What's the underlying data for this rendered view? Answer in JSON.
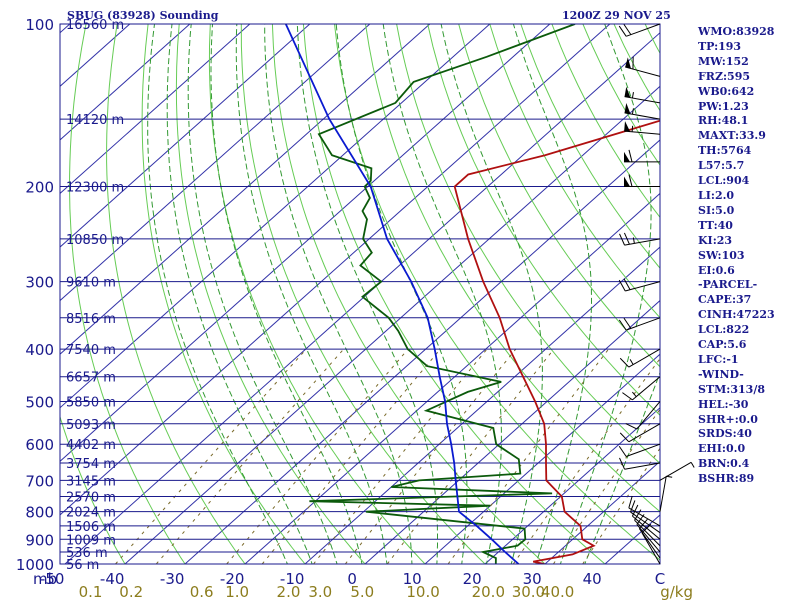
{
  "header": {
    "station": "SBUG (83928) Sounding",
    "datetime": "1200Z 29 NOV 25"
  },
  "stats": [
    "WMO:83928",
    "TP:193",
    "MW:152",
    "FRZ:595",
    "WB0:642",
    "PW:1.23",
    "RH:48.1",
    "MAXT:33.9",
    "TH:5764",
    "L57:5.7",
    "LCL:904",
    "LI:2.0",
    "SI:5.0",
    "TT:40",
    "KI:23",
    "SW:103",
    "EI:0.6",
    "-PARCEL-",
    "CAPE:37",
    "CINH:47223",
    "LCL:822",
    "CAP:5.6",
    "LFC:-1",
    "-WIND-",
    "STM:313/8",
    "HEL:-30",
    "SHR+:0.0",
    "SRDS:40",
    "EHI:0.0",
    "BRN:0.4",
    "BSHR:89"
  ],
  "colors": {
    "frame": "#1a1a8c",
    "isobar": "#1a1a8c",
    "isotherm": "#3333a8",
    "dry_adiabat": "#66cc55",
    "moist_adiabat": "#339933",
    "mixing_ratio": "#7a6a2a",
    "temperature": "#b01010",
    "dewpoint": "#0b5a0b",
    "parcel": "#0a1ad0",
    "wind": "#000000",
    "mixing_ratio_label": "#8c7d1e"
  },
  "chart_data": {
    "type": "line",
    "title": "SBUG (83928) Sounding 1200Z 29 NOV 25",
    "pressure_axis_label": "mb",
    "pressure_levels": [
      100,
      200,
      300,
      400,
      500,
      600,
      700,
      800,
      900,
      1000
    ],
    "pressure_ticks": [
      "100",
      "200",
      "300",
      "400",
      "500",
      "600",
      "700",
      "800",
      "900",
      "1000"
    ],
    "temperature_ticks": [
      "-50",
      "-40",
      "-30",
      "-20",
      "-10",
      "0",
      "10",
      "20",
      "30",
      "40",
      "C"
    ],
    "temperature_values": [
      -50,
      -40,
      -30,
      -20,
      -10,
      0,
      10,
      20,
      30,
      40
    ],
    "mixing_ratio_unit": "g/kg",
    "mixing_ratio_ticks": [
      "0.1",
      "0.2",
      "0.6",
      "1.0",
      "2.0",
      "3.0",
      "5.0",
      "10.0",
      "20.0",
      "30.0",
      "40.0"
    ],
    "height_levels": [
      {
        "p": 100,
        "h": "16560 m"
      },
      {
        "p": 150,
        "h": "14120 m"
      },
      {
        "p": 200,
        "h": "12300 m"
      },
      {
        "p": 250,
        "h": "10850 m"
      },
      {
        "p": 300,
        "h": "9610 m"
      },
      {
        "p": 350,
        "h": "8516 m"
      },
      {
        "p": 400,
        "h": "7540 m"
      },
      {
        "p": 450,
        "h": "6657 m"
      },
      {
        "p": 500,
        "h": "5850 m"
      },
      {
        "p": 550,
        "h": "5093 m"
      },
      {
        "p": 600,
        "h": "4402 m"
      },
      {
        "p": 650,
        "h": "3754 m"
      },
      {
        "p": 700,
        "h": "3145 m"
      },
      {
        "p": 750,
        "h": "2570 m"
      },
      {
        "p": 800,
        "h": "2024 m"
      },
      {
        "p": 850,
        "h": "1506 m"
      },
      {
        "p": 900,
        "h": "1009 m"
      },
      {
        "p": 950,
        "h": "536 m"
      },
      {
        "p": 1000,
        "h": "56 m"
      }
    ],
    "series": [
      {
        "key": "temperature",
        "data": [
          [
            1000,
            29.9
          ],
          [
            990,
            27.6
          ],
          [
            975,
            30.1
          ],
          [
            960,
            32.8
          ],
          [
            925,
            34.7
          ],
          [
            900,
            31.6
          ],
          [
            850,
            28.8
          ],
          [
            800,
            23.5
          ],
          [
            750,
            20.2
          ],
          [
            700,
            14.6
          ],
          [
            650,
            11.3
          ],
          [
            600,
            7.8
          ],
          [
            550,
            3.7
          ],
          [
            500,
            -2.0
          ],
          [
            450,
            -8.6
          ],
          [
            400,
            -16.0
          ],
          [
            350,
            -23.5
          ],
          [
            300,
            -33.0
          ],
          [
            250,
            -43.5
          ],
          [
            200,
            -55.5
          ],
          [
            190,
            -55.5
          ],
          [
            175,
            -46.3
          ],
          [
            150,
            -33.0
          ],
          [
            125,
            -32.0
          ],
          [
            100,
            -32.0
          ]
        ]
      },
      {
        "key": "dewpoint",
        "data": [
          [
            1000,
            21.8
          ],
          [
            975,
            20.7
          ],
          [
            950,
            17.4
          ],
          [
            925,
            22.0
          ],
          [
            900,
            22.1
          ],
          [
            860,
            20.0
          ],
          [
            800,
            -9.6
          ],
          [
            780,
            10.0
          ],
          [
            765,
            -21.0
          ],
          [
            740,
            18.0
          ],
          [
            720,
            -10.0
          ],
          [
            700,
            -6.6
          ],
          [
            680,
            9.0
          ],
          [
            640,
            6.1
          ],
          [
            600,
            -0.5
          ],
          [
            560,
            -4.0
          ],
          [
            520,
            -18.4
          ],
          [
            480,
            -15.0
          ],
          [
            460,
            -11.3
          ],
          [
            430,
            -26.6
          ],
          [
            400,
            -33.0
          ],
          [
            370,
            -38.0
          ],
          [
            350,
            -42.0
          ],
          [
            320,
            -50.3
          ],
          [
            300,
            -50.0
          ],
          [
            280,
            -56.5
          ],
          [
            265,
            -57.0
          ],
          [
            250,
            -61.0
          ],
          [
            230,
            -64.0
          ],
          [
            222,
            -66.3
          ],
          [
            210,
            -67.5
          ],
          [
            200,
            -70.5
          ],
          [
            195,
            -70.6
          ],
          [
            185,
            -72.8
          ],
          [
            175,
            -81.8
          ],
          [
            160,
            -87.9
          ],
          [
            140,
            -81.0
          ],
          [
            128,
            -81.9
          ],
          [
            115,
            -74.4
          ],
          [
            100,
            -65.8
          ]
        ]
      },
      {
        "key": "parcel",
        "data": [
          [
            1000,
            25.6
          ],
          [
            950,
            21.1
          ],
          [
            900,
            16.5
          ],
          [
            850,
            11.5
          ],
          [
            800,
            5.9
          ],
          [
            750,
            2.8
          ],
          [
            700,
            -0.5
          ],
          [
            650,
            -4.0
          ],
          [
            600,
            -8.0
          ],
          [
            550,
            -12.5
          ],
          [
            500,
            -17.0
          ],
          [
            450,
            -22.5
          ],
          [
            400,
            -28.5
          ],
          [
            350,
            -35.5
          ],
          [
            300,
            -45.0
          ],
          [
            250,
            -57.0
          ],
          [
            200,
            -69.5
          ],
          [
            150,
            -89.0
          ],
          [
            100,
            -114.0
          ]
        ]
      }
    ],
    "winds": [
      {
        "p": 1000,
        "dir": 330,
        "spd": 10
      },
      {
        "p": 975,
        "dir": 325,
        "spd": 10
      },
      {
        "p": 950,
        "dir": 320,
        "spd": 10
      },
      {
        "p": 925,
        "dir": 315,
        "spd": 10
      },
      {
        "p": 900,
        "dir": 310,
        "spd": 10
      },
      {
        "p": 875,
        "dir": 305,
        "spd": 10
      },
      {
        "p": 850,
        "dir": 300,
        "spd": 10
      },
      {
        "p": 800,
        "dir": 10,
        "spd": 5
      },
      {
        "p": 700,
        "dir": 60,
        "spd": 5
      },
      {
        "p": 650,
        "dir": 260,
        "spd": 10
      },
      {
        "p": 600,
        "dir": 250,
        "spd": 10
      },
      {
        "p": 550,
        "dir": 240,
        "spd": 10
      },
      {
        "p": 500,
        "dir": 220,
        "spd": 10
      },
      {
        "p": 450,
        "dir": 230,
        "spd": 15
      },
      {
        "p": 400,
        "dir": 240,
        "spd": 15
      },
      {
        "p": 350,
        "dir": 250,
        "spd": 20
      },
      {
        "p": 300,
        "dir": 255,
        "spd": 20
      },
      {
        "p": 250,
        "dir": 260,
        "spd": 25
      },
      {
        "p": 200,
        "dir": 270,
        "spd": 60
      },
      {
        "p": 180,
        "dir": 270,
        "spd": 60
      },
      {
        "p": 160,
        "dir": 275,
        "spd": 55
      },
      {
        "p": 150,
        "dir": 280,
        "spd": 55
      },
      {
        "p": 140,
        "dir": 280,
        "spd": 55
      },
      {
        "p": 125,
        "dir": 285,
        "spd": 60
      },
      {
        "p": 100,
        "dir": 250,
        "spd": 20
      }
    ]
  }
}
